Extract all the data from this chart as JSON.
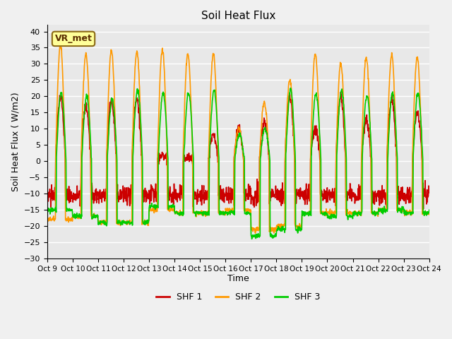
{
  "title": "Soil Heat Flux",
  "ylabel": "Soil Heat Flux ( W/m2)",
  "xlabel": "Time",
  "ylim": [
    -30,
    42
  ],
  "yticks": [
    -30,
    -25,
    -20,
    -15,
    -10,
    -5,
    0,
    5,
    10,
    15,
    20,
    25,
    30,
    35,
    40
  ],
  "xtick_labels": [
    "Oct 9",
    "Oct 10",
    "Oct 11",
    "Oct 12",
    "Oct 13",
    "Oct 14",
    "Oct 15",
    "Oct 16",
    "Oct 17",
    "Oct 18",
    "Oct 19",
    "Oct 20",
    "Oct 21",
    "Oct 22",
    "Oct 23",
    "Oct 24"
  ],
  "colors": {
    "SHF 1": "#cc0000",
    "SHF 2": "#ff9900",
    "SHF 3": "#00cc00"
  },
  "legend_label": "VR_met",
  "plot_bg_color": "#e8e8e8",
  "fig_bg_color": "#f0f0f0",
  "grid_color": "#ffffff",
  "line_width": 1.2,
  "n_days": 15,
  "pts_per_day": 96,
  "shf2_peaks": [
    35.5,
    33.0,
    34.0,
    34.0,
    34.5,
    33.0,
    33.0,
    10.0,
    18.0,
    25.0,
    33.0,
    30.0,
    32.0,
    32.5,
    32.0
  ],
  "shf1_peaks": [
    20.0,
    17.0,
    19.0,
    19.0,
    1.5,
    1.5,
    8.0,
    10.0,
    12.0,
    20.0,
    10.0,
    20.0,
    13.0,
    19.0,
    15.0
  ],
  "shf3_peaks": [
    21.0,
    20.0,
    19.0,
    22.0,
    21.0,
    21.0,
    22.0,
    8.0,
    10.0,
    22.0,
    21.0,
    22.0,
    20.0,
    21.0,
    21.0
  ],
  "shf1_night": -10.5,
  "shf2_nights": [
    -18.0,
    -17.0,
    -19.0,
    -19.0,
    -15.0,
    -16.0,
    -16.0,
    -15.0,
    -21.0,
    -20.0,
    -16.0,
    -16.0,
    -16.0,
    -15.0,
    -16.0
  ],
  "shf3_nights": [
    -15.0,
    -17.0,
    -19.0,
    -19.0,
    -14.0,
    -16.0,
    -16.0,
    -16.0,
    -23.0,
    -21.0,
    -16.0,
    -17.0,
    -16.0,
    -15.0,
    -16.0
  ]
}
